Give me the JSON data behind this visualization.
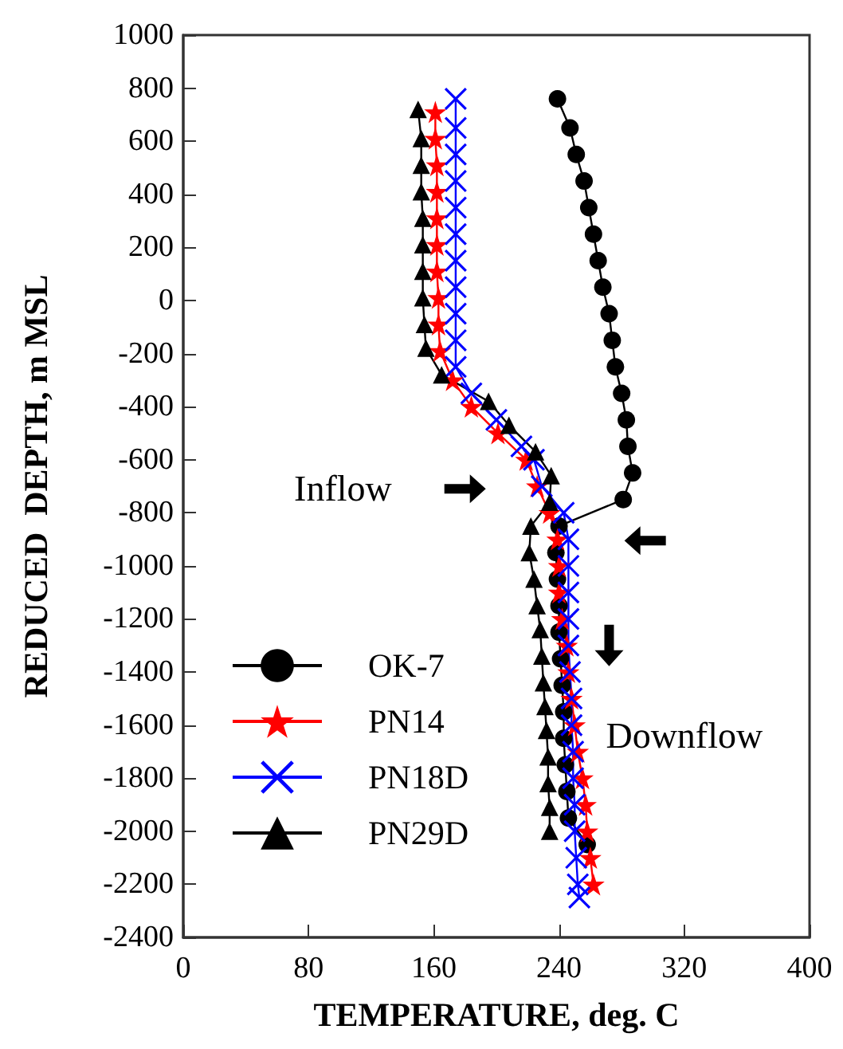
{
  "chart_data": {
    "type": "line",
    "xlabel": "TEMPERATURE, deg. C",
    "ylabel": "REDUCED  DEPTH, m MSL",
    "xlim": [
      0,
      400
    ],
    "xticks": [
      0,
      80,
      160,
      240,
      320,
      400
    ],
    "ylim": [
      -2400,
      1000
    ],
    "yticks": [
      -2400,
      -2200,
      -2000,
      -1800,
      -1600,
      -1400,
      -1200,
      -1000,
      -800,
      -600,
      -400,
      -200,
      0,
      200,
      400,
      600,
      800,
      1000
    ],
    "legend": "bottom left",
    "annotations": [
      "Inflow",
      "Downflow"
    ],
    "series": [
      {
        "name": "OK-7",
        "color": "#000000",
        "marker": "circle",
        "x": [
          239,
          247,
          251,
          256,
          259,
          262,
          265,
          268,
          272,
          274,
          276,
          280,
          283,
          284,
          287,
          281,
          240,
          238,
          239,
          240,
          240,
          241,
          242,
          243,
          243,
          244,
          245,
          246,
          258
        ],
        "values": [
          760,
          650,
          550,
          450,
          350,
          250,
          150,
          50,
          -50,
          -150,
          -250,
          -350,
          -450,
          -550,
          -650,
          -750,
          -850,
          -950,
          -1050,
          -1150,
          -1250,
          -1350,
          -1450,
          -1550,
          -1650,
          -1750,
          -1850,
          -1950,
          -2050
        ]
      },
      {
        "name": "PN14",
        "color": "#ff0000",
        "marker": "star",
        "x": [
          161,
          161,
          162,
          162,
          162,
          162,
          162,
          163,
          163,
          164,
          172,
          184,
          201,
          219,
          226,
          234,
          239,
          240,
          240,
          242,
          245,
          246,
          248,
          250,
          252,
          255,
          257,
          258,
          260,
          262
        ],
        "values": [
          710,
          610,
          510,
          410,
          310,
          210,
          110,
          10,
          -90,
          -190,
          -300,
          -400,
          -500,
          -600,
          -700,
          -800,
          -900,
          -1000,
          -1100,
          -1200,
          -1300,
          -1400,
          -1500,
          -1600,
          -1700,
          -1800,
          -1900,
          -2000,
          -2100,
          -2200
        ]
      },
      {
        "name": "PN18D",
        "color": "#0000ff",
        "marker": "cross",
        "x": [
          174,
          174,
          174,
          174,
          174,
          174,
          174,
          174,
          174,
          174,
          174,
          184,
          200,
          216,
          224,
          229,
          243,
          246,
          246,
          246,
          246,
          246,
          247,
          248,
          248,
          249,
          249,
          250,
          250,
          251,
          252,
          253
        ],
        "values": [
          760,
          650,
          550,
          450,
          350,
          250,
          150,
          50,
          -50,
          -150,
          -250,
          -350,
          -450,
          -550,
          -600,
          -700,
          -800,
          -900,
          -1000,
          -1100,
          -1200,
          -1300,
          -1400,
          -1500,
          -1600,
          -1700,
          -1800,
          -1900,
          -2000,
          -2100,
          -2200,
          -2250
        ]
      },
      {
        "name": "PN29D",
        "color": "#000000",
        "marker": "triangle",
        "x": [
          150,
          152,
          152,
          152,
          153,
          153,
          153,
          153,
          154,
          155,
          165,
          195,
          208,
          225,
          235,
          234,
          222,
          221,
          224,
          226,
          228,
          229,
          230,
          231,
          232,
          233,
          233,
          234,
          234
        ],
        "values": [
          720,
          610,
          510,
          410,
          310,
          210,
          110,
          10,
          -90,
          -180,
          -280,
          -380,
          -470,
          -570,
          -660,
          -760,
          -850,
          -950,
          -1050,
          -1150,
          -1240,
          -1340,
          -1440,
          -1530,
          -1620,
          -1720,
          -1820,
          -1910,
          -2000
        ]
      }
    ]
  }
}
